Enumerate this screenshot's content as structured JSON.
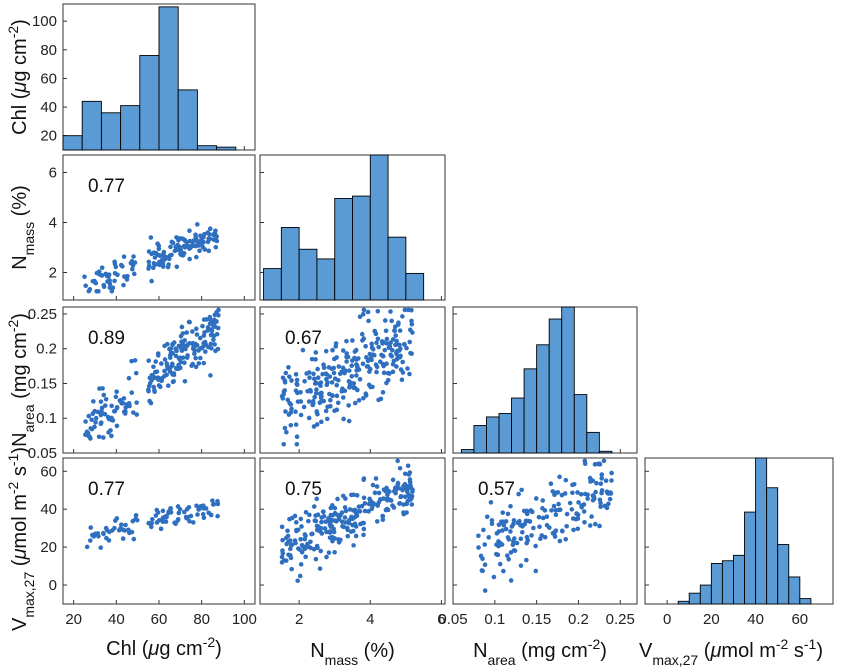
{
  "chart_data": {
    "type": "scatter",
    "layout": "pairs-matrix",
    "variables": [
      {
        "id": "chl",
        "label_main": "Chl (",
        "label_mu": "μ",
        "label_rest": "g cm",
        "label_sup": "-2",
        "label_close": ")"
      },
      {
        "id": "nmass",
        "label_main": "N",
        "label_sub": "mass",
        "label_rest": " (%)"
      },
      {
        "id": "narea",
        "label_main": "N",
        "label_sub": "area",
        "label_rest": " (mg cm",
        "label_sup": "-2",
        "label_close": ")"
      },
      {
        "id": "vmax",
        "label_main": "V",
        "label_sub": "max,27",
        "label_rest": " (",
        "label_mu": "μ",
        "label_rest2": "mol m",
        "label_sup": "-2",
        "label_rest3": " s",
        "label_sup2": "-1",
        "label_close": ")"
      }
    ],
    "x_ticks": {
      "chl": [
        "20",
        "40",
        "60",
        "80",
        "100"
      ],
      "nmass": [
        "2",
        "4",
        "6"
      ],
      "narea": [
        "0.05",
        "0.1",
        "0.15",
        "0.2",
        "0.25"
      ],
      "vmax": [
        "0",
        "20",
        "40",
        "60"
      ]
    },
    "y_ticks": {
      "chl": [
        "20",
        "40",
        "60",
        "80",
        "100"
      ],
      "nmass": [
        "2",
        "4",
        "6"
      ],
      "narea": [
        "0.05",
        "0.1",
        "0.15",
        "0.2",
        "0.25"
      ],
      "vmax": [
        "0",
        "20",
        "40",
        "60"
      ]
    },
    "x_ranges": {
      "chl": [
        15,
        105
      ],
      "nmass": [
        0.9,
        6.1
      ],
      "narea": [
        0.05,
        0.27
      ],
      "vmax": [
        -10,
        75
      ]
    },
    "y_ranges": {
      "chl_hist": [
        10,
        112
      ],
      "nmass": [
        0.9,
        6.7
      ],
      "narea": [
        0.05,
        0.26
      ],
      "vmax": [
        -10,
        67
      ]
    },
    "histograms": {
      "chl": {
        "bin_edges": [
          15,
          24,
          33,
          42,
          51,
          60,
          69,
          78,
          87,
          96
        ],
        "counts": [
          20,
          44,
          36,
          41,
          76,
          110,
          52,
          13,
          12
        ]
      },
      "nmass": {
        "bin_edges": [
          1.0,
          1.5,
          2.0,
          2.5,
          3.0,
          3.5,
          4.0,
          4.5,
          5.0,
          5.5
        ],
        "counts": [
          1.3,
          3.0,
          2.1,
          1.7,
          4.2,
          4.3,
          6.0,
          2.6,
          1.1
        ]
      },
      "narea": {
        "bin_edges": [
          0.06,
          0.075,
          0.09,
          0.105,
          0.12,
          0.135,
          0.15,
          0.165,
          0.18,
          0.195,
          0.21,
          0.225,
          0.24
        ],
        "counts": [
          2,
          16,
          21,
          23,
          32,
          49,
          63,
          78,
          85,
          34,
          12,
          1
        ]
      },
      "vmax": {
        "bin_edges": [
          5,
          10,
          15,
          20,
          25,
          30,
          35,
          40,
          45,
          50,
          55,
          60,
          65
        ],
        "counts": [
          1,
          4,
          7,
          15,
          16,
          18,
          34,
          54,
          43,
          22,
          10,
          2
        ]
      }
    },
    "scatter_panels": [
      {
        "x": "chl",
        "y": "nmass",
        "r": "0.77",
        "n": 160,
        "slope": 0.031,
        "intercept": 0.75,
        "noise": 0.32
      },
      {
        "x": "chl",
        "y": "narea",
        "r": "0.89",
        "n": 230,
        "slope": 0.0024,
        "intercept": 0.02,
        "noise": 0.018
      },
      {
        "x": "nmass",
        "y": "narea",
        "r": "0.67",
        "n": 280,
        "slope": 0.028,
        "intercept": 0.07,
        "noise": 0.03
      },
      {
        "x": "chl",
        "y": "vmax",
        "r": "0.77",
        "n": 95,
        "slope": 0.3,
        "intercept": 16,
        "noise": 3.5
      },
      {
        "x": "nmass",
        "y": "vmax",
        "r": "0.75",
        "n": 260,
        "slope": 9.0,
        "intercept": 5,
        "noise": 7
      },
      {
        "x": "narea",
        "y": "vmax",
        "r": "0.57",
        "n": 190,
        "slope": 230,
        "intercept": -2,
        "noise": 9
      }
    ],
    "color": "#2f6fc0",
    "bar_fill": "#5b9bd5",
    "bar_stroke": "#000000"
  }
}
